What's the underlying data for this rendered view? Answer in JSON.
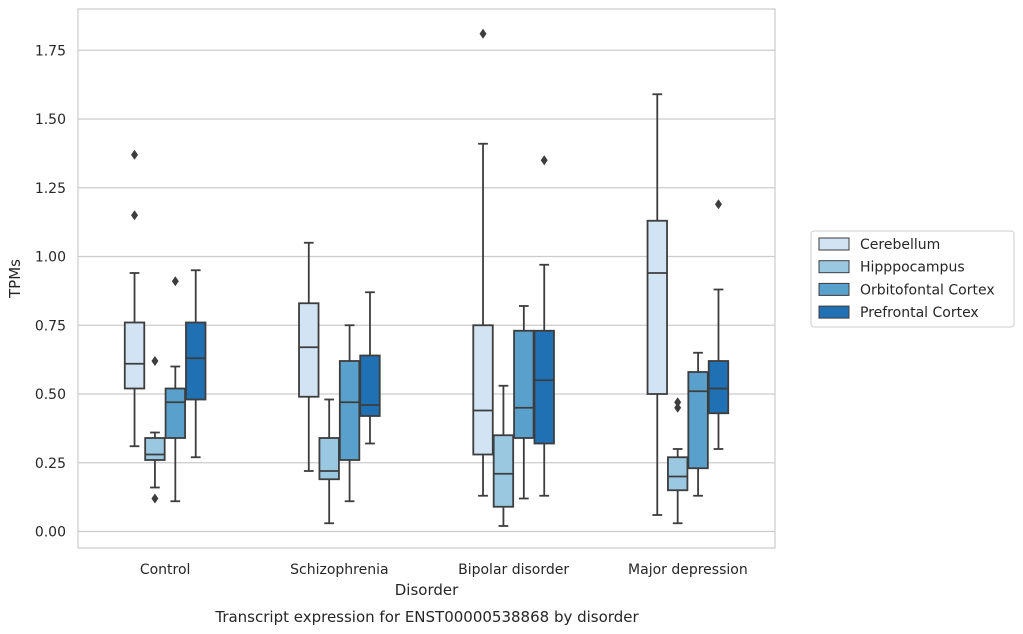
{
  "chart_data": {
    "type": "box",
    "caption": "Transcript expression for ENST00000538868 by disorder",
    "xlabel": "Disorder",
    "ylabel": "TPMs",
    "ylim": [
      -0.06,
      1.9
    ],
    "yticks": [
      0.0,
      0.25,
      0.5,
      0.75,
      1.0,
      1.25,
      1.5,
      1.75
    ],
    "ytick_labels": [
      "0.00",
      "0.25",
      "0.50",
      "0.75",
      "1.00",
      "1.25",
      "1.50",
      "1.75"
    ],
    "grid": "horizontal",
    "legend_position": "right",
    "categories": [
      "Control",
      "Schizophrenia",
      "Bipolar disorder",
      "Major depression"
    ],
    "series": [
      {
        "name": "Cerebellum",
        "color": "#d2e3f3",
        "boxes": [
          {
            "whislo": 0.31,
            "q1": 0.52,
            "med": 0.61,
            "q3": 0.76,
            "whishi": 0.94,
            "fliers": [
              1.15,
              1.37
            ]
          },
          {
            "whislo": 0.22,
            "q1": 0.49,
            "med": 0.67,
            "q3": 0.83,
            "whishi": 1.05,
            "fliers": []
          },
          {
            "whislo": 0.13,
            "q1": 0.28,
            "med": 0.44,
            "q3": 0.75,
            "whishi": 1.41,
            "fliers": [
              1.81
            ]
          },
          {
            "whislo": 0.06,
            "q1": 0.5,
            "med": 0.94,
            "q3": 1.13,
            "whishi": 1.59,
            "fliers": []
          }
        ]
      },
      {
        "name": "Hipppocampus",
        "color": "#9ac8e0",
        "boxes": [
          {
            "whislo": 0.16,
            "q1": 0.26,
            "med": 0.28,
            "q3": 0.34,
            "whishi": 0.36,
            "fliers": [
              0.12,
              0.62
            ]
          },
          {
            "whislo": 0.03,
            "q1": 0.19,
            "med": 0.22,
            "q3": 0.34,
            "whishi": 0.48,
            "fliers": []
          },
          {
            "whislo": 0.02,
            "q1": 0.09,
            "med": 0.21,
            "q3": 0.35,
            "whishi": 0.53,
            "fliers": []
          },
          {
            "whislo": 0.03,
            "q1": 0.15,
            "med": 0.2,
            "q3": 0.27,
            "whishi": 0.3,
            "fliers": [
              0.45,
              0.47
            ]
          }
        ]
      },
      {
        "name": "Orbitofontal Cortex",
        "color": "#5aa0cd",
        "boxes": [
          {
            "whislo": 0.11,
            "q1": 0.34,
            "med": 0.47,
            "q3": 0.52,
            "whishi": 0.6,
            "fliers": [
              0.91
            ]
          },
          {
            "whislo": 0.11,
            "q1": 0.26,
            "med": 0.47,
            "q3": 0.62,
            "whishi": 0.75,
            "fliers": []
          },
          {
            "whislo": 0.12,
            "q1": 0.34,
            "med": 0.45,
            "q3": 0.73,
            "whishi": 0.82,
            "fliers": []
          },
          {
            "whislo": 0.13,
            "q1": 0.23,
            "med": 0.51,
            "q3": 0.58,
            "whishi": 0.65,
            "fliers": []
          }
        ]
      },
      {
        "name": "Prefrontal Cortex",
        "color": "#2070b4",
        "boxes": [
          {
            "whislo": 0.27,
            "q1": 0.48,
            "med": 0.63,
            "q3": 0.76,
            "whishi": 0.95,
            "fliers": []
          },
          {
            "whislo": 0.32,
            "q1": 0.42,
            "med": 0.46,
            "q3": 0.64,
            "whishi": 0.87,
            "fliers": []
          },
          {
            "whislo": 0.13,
            "q1": 0.32,
            "med": 0.55,
            "q3": 0.73,
            "whishi": 0.97,
            "fliers": [
              1.35
            ]
          },
          {
            "whislo": 0.3,
            "q1": 0.43,
            "med": 0.52,
            "q3": 0.62,
            "whishi": 0.88,
            "fliers": [
              1.19
            ]
          }
        ]
      }
    ]
  }
}
